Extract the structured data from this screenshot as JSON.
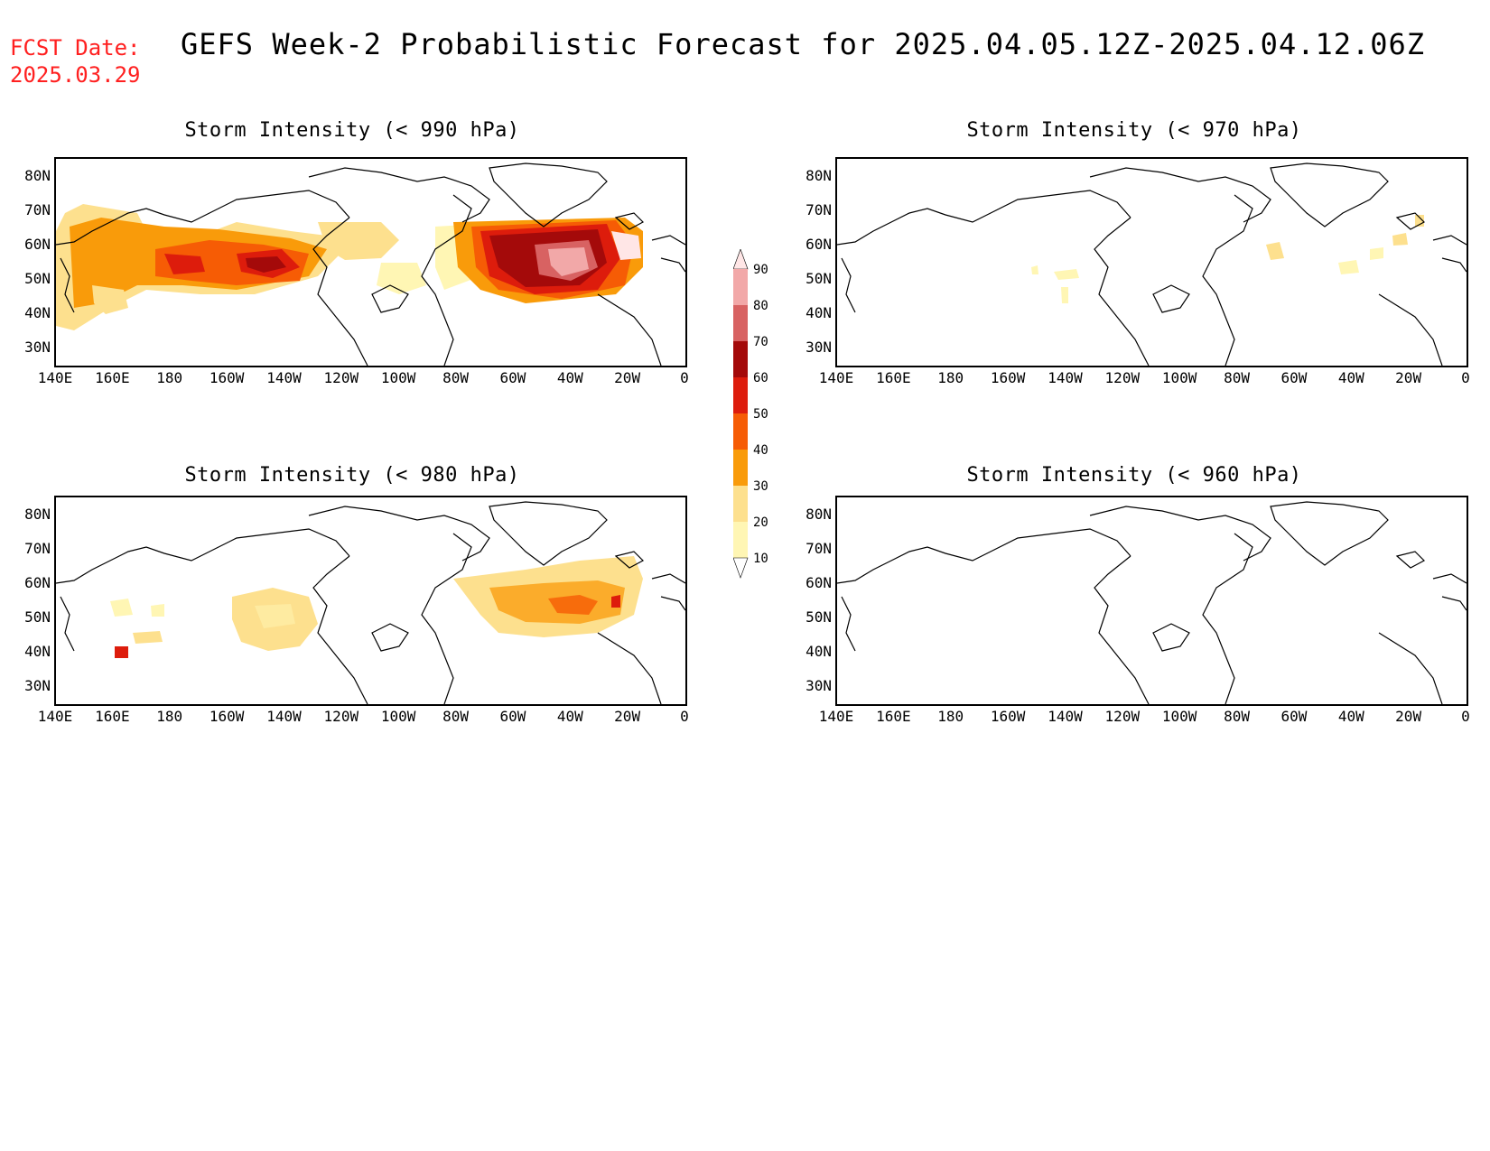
{
  "header": {
    "fcst_label": "FCST Date:",
    "fcst_date": "2025.03.29",
    "title": "GEFS Week-2 Probabilistic Forecast for 2025.04.05.12Z-2025.04.12.06Z"
  },
  "panels": [
    {
      "id": "p990",
      "title": "Storm Intensity (< 990 hPa)"
    },
    {
      "id": "p970",
      "title": "Storm Intensity (< 970 hPa)"
    },
    {
      "id": "p980",
      "title": "Storm Intensity (< 980 hPa)"
    },
    {
      "id": "p960",
      "title": "Storm Intensity (< 960 hPa)"
    }
  ],
  "axes": {
    "lat_labels": [
      "80N",
      "70N",
      "60N",
      "50N",
      "40N",
      "30N"
    ],
    "lon_labels": [
      "140E",
      "160E",
      "180",
      "160W",
      "140W",
      "120W",
      "100W",
      "80W",
      "60W",
      "40W",
      "20W",
      "0"
    ]
  },
  "colorbar": {
    "levels": [
      "10",
      "20",
      "30",
      "40",
      "50",
      "60",
      "70",
      "80",
      "90"
    ],
    "colors": [
      "#fff6b4",
      "#fde08e",
      "#f99b0a",
      "#f65c05",
      "#dd1c0c",
      "#a40a0a",
      "#d86262",
      "#f2a8a8",
      "#ffe6e6"
    ]
  }
}
